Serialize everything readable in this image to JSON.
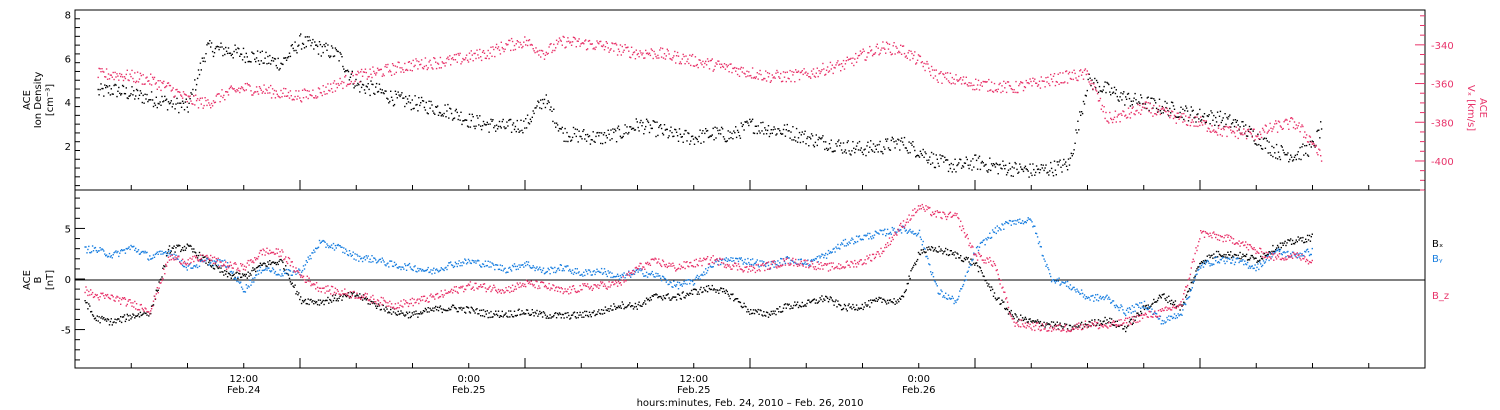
{
  "colors": {
    "black": "#000000",
    "blue": "#1a7fe0",
    "pink": "#e8336a"
  },
  "chart_data": [
    {
      "type": "scatter",
      "ylabel_left": [
        "ACE",
        "Ion Density",
        "[cm⁻³]"
      ],
      "ylabel_right": [
        "ACE",
        "Vₓ [km/s]"
      ],
      "ylim_left": [
        0,
        8.2
      ],
      "ylim_right": [
        -415,
        -322
      ],
      "yticks_left": [
        "2",
        "4",
        "6",
        "8"
      ],
      "yticks_right": [
        "-340",
        "-360",
        "-380",
        "-400"
      ],
      "series": [
        {
          "color": "#000000",
          "axis": "left",
          "x": [
            1.2,
            2,
            3,
            4,
            5,
            6,
            7,
            8,
            9,
            10,
            11,
            12,
            13,
            14,
            15,
            16,
            17,
            18,
            19,
            20,
            21,
            22,
            23,
            24,
            25,
            26,
            27,
            28,
            29,
            30,
            31,
            32,
            33,
            34,
            35,
            36,
            37,
            38,
            39,
            40,
            41,
            42,
            43,
            44,
            45,
            46,
            47,
            48,
            49,
            50,
            51,
            52,
            53,
            54,
            55,
            56,
            57,
            58,
            59,
            60,
            61,
            62,
            63,
            64,
            65,
            66,
            66.5
          ],
          "y": [
            4.5,
            4.6,
            4.4,
            4.2,
            4.0,
            3.8,
            6.5,
            6.4,
            6.2,
            6.0,
            5.8,
            6.8,
            6.5,
            6.2,
            4.8,
            4.6,
            4.2,
            4.0,
            3.8,
            3.6,
            3.2,
            3.0,
            2.9,
            3.0,
            4.2,
            2.6,
            2.5,
            2.4,
            2.6,
            3.0,
            2.8,
            2.5,
            2.4,
            2.6,
            2.5,
            3.0,
            2.8,
            2.7,
            2.4,
            2.2,
            2.0,
            1.9,
            2.0,
            2.2,
            1.8,
            1.3,
            1.1,
            1.3,
            1.1,
            1.0,
            0.9,
            1.0,
            1.2,
            5.0,
            4.6,
            4.2,
            4.0,
            3.8,
            3.6,
            3.4,
            3.3,
            3.0,
            2.4,
            1.8,
            1.6,
            2.0,
            3.0
          ]
        },
        {
          "color": "#e8336a",
          "axis": "right",
          "x": [
            1.2,
            2,
            3,
            4,
            5,
            6,
            7,
            8,
            9,
            10,
            11,
            12,
            13,
            14,
            15,
            16,
            17,
            18,
            19,
            20,
            21,
            22,
            23,
            24,
            25,
            26,
            27,
            28,
            29,
            30,
            31,
            32,
            33,
            34,
            35,
            36,
            37,
            38,
            39,
            40,
            41,
            42,
            43,
            44,
            45,
            46,
            47,
            48,
            49,
            50,
            51,
            52,
            53,
            54,
            55,
            56,
            57,
            58,
            59,
            60,
            61,
            62,
            63,
            64,
            65,
            66,
            66.5
          ],
          "y": [
            -355,
            -355,
            -356,
            -358,
            -362,
            -368,
            -370,
            -365,
            -362,
            -363,
            -365,
            -366,
            -364,
            -360,
            -356,
            -354,
            -352,
            -350,
            -349,
            -348,
            -346,
            -344,
            -340,
            -338,
            -344,
            -338,
            -339,
            -340,
            -342,
            -344,
            -344,
            -346,
            -348,
            -350,
            -352,
            -354,
            -356,
            -356,
            -355,
            -352,
            -350,
            -345,
            -341,
            -342,
            -348,
            -356,
            -358,
            -360,
            -361,
            -362,
            -360,
            -358,
            -356,
            -355,
            -378,
            -376,
            -372,
            -375,
            -378,
            -380,
            -384,
            -385,
            -386,
            -382,
            -380,
            -390,
            -400
          ]
        }
      ]
    },
    {
      "type": "scatter",
      "ylabel": [
        "ACE",
        "B",
        "[nT]"
      ],
      "ylim": [
        -8.8,
        8.8
      ],
      "yticks": [
        "5",
        "0",
        "-5"
      ],
      "legend": [
        "Bₓ",
        "Bᵧ",
        "B_z"
      ],
      "series": [
        {
          "name": "Bₓ",
          "color": "#000000",
          "x": [
            0.5,
            1,
            2,
            3,
            4,
            5,
            6,
            7,
            8,
            9,
            10,
            11,
            12,
            13,
            14,
            15,
            16,
            17,
            18,
            19,
            20,
            21,
            22,
            23,
            24,
            25,
            26,
            27,
            28,
            29,
            30,
            31,
            32,
            33,
            34,
            35,
            36,
            37,
            38,
            39,
            40,
            41,
            42,
            43,
            44,
            45,
            46,
            47,
            48,
            49,
            50,
            51,
            52,
            53,
            54,
            55,
            56,
            57,
            58,
            59,
            60,
            61,
            62,
            63,
            64,
            65,
            66
          ],
          "y": [
            -2,
            -3.8,
            -4.2,
            -3.6,
            -3.2,
            3,
            3.2,
            1.8,
            0.5,
            0.3,
            1.5,
            1.8,
            -2,
            -2.2,
            -1.8,
            -1.5,
            -2.5,
            -3.2,
            -3.5,
            -3,
            -2.8,
            -3,
            -3.4,
            -3.4,
            -3.2,
            -3.5,
            -3.6,
            -3.5,
            -3.2,
            -2.5,
            -2.6,
            -1.6,
            -1.8,
            -1.2,
            -0.8,
            -1.6,
            -3.2,
            -3.4,
            -2.6,
            -2.4,
            -1.8,
            -2.8,
            -2.6,
            -2.0,
            -2.2,
            2.8,
            3.0,
            2.4,
            1.6,
            -1.5,
            -3.6,
            -4.2,
            -4.4,
            -4.8,
            -4.4,
            -4.0,
            -4.8,
            -2.8,
            -1.6,
            -2.8,
            1.8,
            2.6,
            2.4,
            2.0,
            3.2,
            3.8,
            4.2
          ]
        },
        {
          "name": "Bᵧ",
          "color": "#1a7fe0",
          "x": [
            0.5,
            1,
            2,
            3,
            4,
            5,
            6,
            7,
            8,
            9,
            10,
            11,
            12,
            13,
            14,
            15,
            16,
            17,
            18,
            19,
            20,
            21,
            22,
            23,
            24,
            25,
            26,
            27,
            28,
            29,
            30,
            31,
            32,
            33,
            34,
            35,
            36,
            37,
            38,
            39,
            40,
            41,
            42,
            43,
            44,
            45,
            46,
            47,
            48,
            49,
            50,
            51,
            52,
            53,
            54,
            55,
            56,
            57,
            58,
            59,
            60,
            61,
            62,
            63,
            64,
            65,
            66
          ],
          "y": [
            3,
            3.0,
            2.4,
            3.2,
            2.2,
            2.8,
            1.2,
            1.8,
            1.6,
            -1,
            1.2,
            0.6,
            0.8,
            3.6,
            3.2,
            2.2,
            2.0,
            1.4,
            1.2,
            0.8,
            1.5,
            1.8,
            1.5,
            1.0,
            1.6,
            0.8,
            1.2,
            0.6,
            0.9,
            0.2,
            0.8,
            0.4,
            -0.6,
            -0.2,
            1.6,
            2.0,
            1.8,
            1.4,
            2.0,
            1.6,
            2.4,
            3.6,
            4.2,
            4.6,
            5.0,
            4.6,
            -1.2,
            -2.2,
            2.8,
            4.8,
            5.8,
            5.8,
            0.2,
            -0.6,
            -1.8,
            -1.8,
            -3.2,
            -2.4,
            -4.2,
            -3.2,
            1.4,
            2.0,
            1.8,
            1.2,
            2.8,
            2.4,
            2.8
          ]
        },
        {
          "name": "B_z",
          "color": "#e8336a",
          "x": [
            0.5,
            1,
            2,
            3,
            4,
            5,
            6,
            7,
            8,
            9,
            10,
            11,
            12,
            13,
            14,
            15,
            16,
            17,
            18,
            19,
            20,
            21,
            22,
            23,
            24,
            25,
            26,
            27,
            28,
            29,
            30,
            31,
            32,
            33,
            34,
            35,
            36,
            37,
            38,
            39,
            40,
            41,
            42,
            43,
            44,
            45,
            46,
            47,
            48,
            49,
            50,
            51,
            52,
            53,
            54,
            55,
            56,
            57,
            58,
            59,
            60,
            61,
            62,
            63,
            64,
            65,
            66
          ],
          "y": [
            -1,
            -1.6,
            -1.8,
            -2.4,
            -3.0,
            2.2,
            1.8,
            2.2,
            1.4,
            1.2,
            2.8,
            2.6,
            0.4,
            -0.8,
            -1.2,
            -1.5,
            -2.0,
            -2.5,
            -2.2,
            -1.8,
            -1.2,
            -0.6,
            -0.8,
            -1.0,
            -0.4,
            -0.6,
            -1.2,
            -0.8,
            -0.6,
            -0.4,
            1.2,
            1.8,
            1.2,
            1.6,
            2.0,
            1.4,
            1.0,
            1.4,
            1.8,
            1.6,
            1.2,
            1.4,
            1.8,
            2.8,
            5.2,
            7.2,
            6.4,
            6.2,
            2.4,
            1.6,
            -4.2,
            -4.6,
            -4.8,
            -4.8,
            -4.4,
            -4.6,
            -4.2,
            -3.6,
            -3.2,
            -2.4,
            4.6,
            4.2,
            3.8,
            2.8,
            2.2,
            2.4,
            1.8
          ]
        }
      ]
    }
  ],
  "x_axis": {
    "ticks": [
      {
        "time": "12:00",
        "date": "Feb.24"
      },
      {
        "time": "0:00",
        "date": "Feb.25"
      },
      {
        "time": "12:00",
        "date": "Feb.25"
      },
      {
        "time": "0:00",
        "date": "Feb.26"
      }
    ],
    "label": "hours:minutes, Feb. 24, 2010 – Feb. 26, 2010"
  }
}
